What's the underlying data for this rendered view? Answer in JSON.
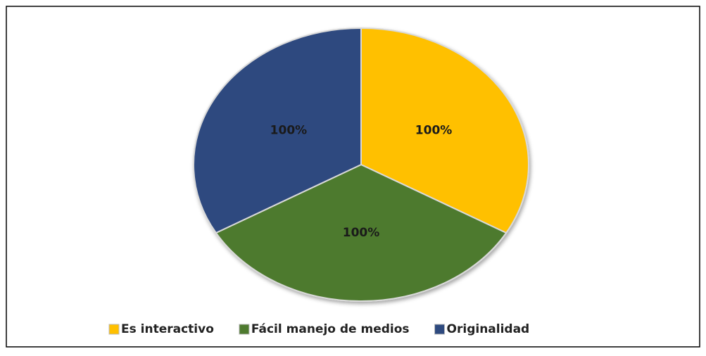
{
  "chart_data": {
    "type": "pie",
    "categories": [
      "Es interactivo",
      "Fácil manejo de medios",
      "Originalidad"
    ],
    "values": [
      100,
      100,
      100
    ],
    "value_labels": [
      "100%",
      "100%",
      "100%"
    ],
    "colors": [
      "#ffc000",
      "#4e7a2f",
      "#2e4a7f"
    ],
    "legend": "bottom"
  }
}
